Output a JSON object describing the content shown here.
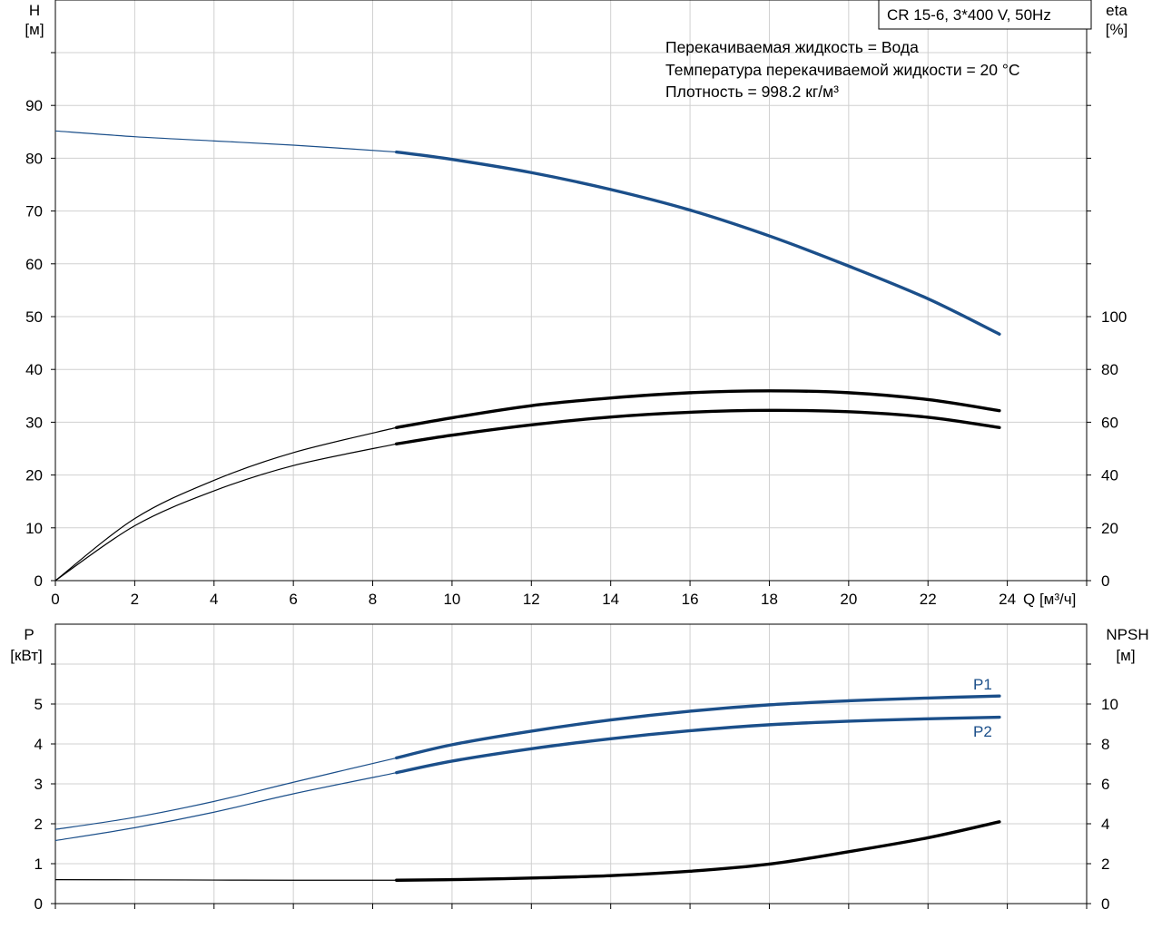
{
  "title_box": "CR 15-6, 3*400 V, 50Hz",
  "info_lines": [
    "Перекачиваемая жидкость = Вода",
    "Температура перекачиваемой жидкости = 20 °C",
    "Плотность = 998.2 кг/м³"
  ],
  "colors": {
    "blue": "#1b4f8a",
    "black": "#000000",
    "grid": "#d0d0d0"
  },
  "chart_data": [
    {
      "type": "line",
      "xlabel": "Q [м³/ч]",
      "x_tick_labels": [
        "0",
        "2",
        "4",
        "6",
        "8",
        "10",
        "12",
        "14",
        "16",
        "18",
        "20",
        "22",
        "24"
      ],
      "xlim": [
        0,
        26
      ],
      "left_axis": {
        "label": [
          "H",
          "[м]"
        ],
        "ylim": [
          0,
          110
        ],
        "tick_labels": [
          "0",
          "10",
          "20",
          "30",
          "40",
          "50",
          "60",
          "70",
          "80",
          "90"
        ]
      },
      "right_axis": {
        "label": [
          "eta",
          "[%]"
        ],
        "ylim": [
          0,
          220
        ],
        "tick_labels": [
          "0",
          "20",
          "40",
          "60",
          "80",
          "100"
        ]
      },
      "grid": true,
      "series": [
        {
          "axis": "left",
          "color": "#1b4f8a",
          "op_from": 8.6,
          "x": [
            0,
            2,
            4,
            6,
            8.6,
            10,
            12,
            14,
            16,
            18,
            20,
            22,
            23.8
          ],
          "y": [
            85.2,
            84.1,
            83.3,
            82.5,
            81.2,
            79.8,
            77.3,
            74.1,
            70.2,
            65.3,
            59.6,
            53.4,
            46.7
          ]
        },
        {
          "axis": "right",
          "color": "#000000",
          "op_from": 8.6,
          "x": [
            0,
            2,
            4,
            6,
            8.6,
            10,
            12,
            14,
            16,
            18,
            20,
            22,
            23.8
          ],
          "y": [
            0,
            23.5,
            38,
            48.5,
            58,
            61.7,
            66.3,
            69.2,
            71.2,
            71.9,
            71.2,
            68.6,
            64.4
          ]
        },
        {
          "axis": "right",
          "color": "#000000",
          "op_from": 8.6,
          "x": [
            0,
            2,
            4,
            6,
            8.6,
            10,
            12,
            14,
            16,
            18,
            20,
            22,
            23.8
          ],
          "y": [
            0,
            20.8,
            34,
            43.6,
            51.8,
            55.1,
            59,
            62,
            63.8,
            64.5,
            64,
            61.9,
            58
          ]
        }
      ]
    },
    {
      "type": "line",
      "xlim": [
        0,
        26
      ],
      "x_tick_labels": [],
      "left_axis": {
        "label": [
          "P",
          "[кВт]"
        ],
        "ylim": [
          0,
          7
        ],
        "tick_labels": [
          "0",
          "1",
          "2",
          "3",
          "4",
          "5"
        ]
      },
      "right_axis": {
        "label": [
          "NPSH",
          "[м]"
        ],
        "ylim": [
          0,
          14
        ],
        "tick_labels": [
          "0",
          "2",
          "4",
          "6",
          "8",
          "10"
        ]
      },
      "grid": true,
      "series": [
        {
          "name": "P1",
          "axis": "left",
          "color": "#1b4f8a",
          "op_from": 8.6,
          "x": [
            0,
            2,
            4,
            6,
            8.6,
            10,
            12,
            14,
            16,
            18,
            20,
            22,
            23.8
          ],
          "y": [
            1.86,
            2.16,
            2.56,
            3.04,
            3.65,
            3.98,
            4.32,
            4.6,
            4.82,
            4.98,
            5.08,
            5.15,
            5.2
          ]
        },
        {
          "name": "P2",
          "axis": "left",
          "color": "#1b4f8a",
          "op_from": 8.6,
          "x": [
            0,
            2,
            4,
            6,
            8.6,
            10,
            12,
            14,
            16,
            18,
            20,
            22,
            23.8
          ],
          "y": [
            1.58,
            1.9,
            2.29,
            2.75,
            3.28,
            3.57,
            3.88,
            4.13,
            4.33,
            4.48,
            4.57,
            4.63,
            4.67
          ]
        },
        {
          "axis": "right",
          "color": "#000000",
          "op_from": 8.6,
          "x": [
            0,
            2,
            4,
            6,
            8.6,
            10,
            12,
            14,
            16,
            18,
            20,
            22,
            23.8
          ],
          "y": [
            1.2,
            1.19,
            1.18,
            1.17,
            1.17,
            1.2,
            1.28,
            1.4,
            1.62,
            1.98,
            2.6,
            3.3,
            4.1
          ]
        }
      ]
    }
  ]
}
